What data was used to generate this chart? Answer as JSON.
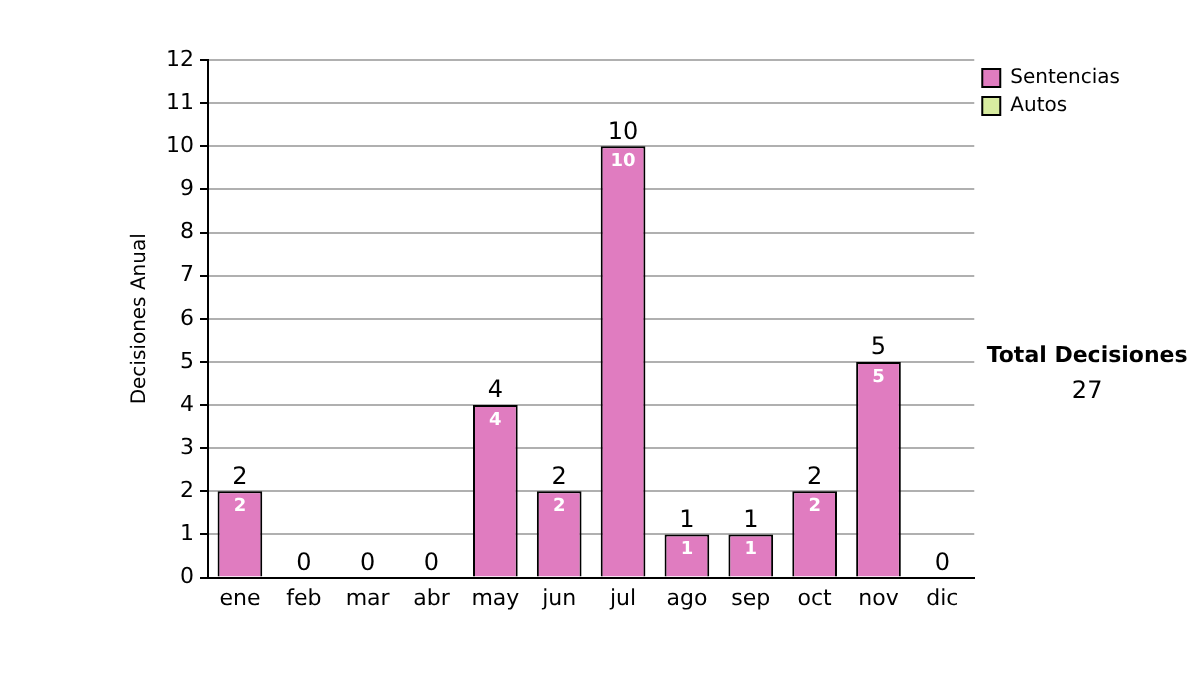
{
  "chart_data": {
    "type": "bar",
    "stacked": true,
    "ylabel": "Decisiones Anual",
    "categories": [
      "ene",
      "feb",
      "mar",
      "abr",
      "may",
      "jun",
      "jul",
      "ago",
      "sep",
      "oct",
      "nov",
      "dic"
    ],
    "series": [
      {
        "name": "Sentencias",
        "color": "#e07cc0",
        "values": [
          2,
          0,
          0,
          0,
          4,
          2,
          10,
          1,
          1,
          2,
          5,
          0
        ],
        "value_labels": [
          "2",
          null,
          null,
          null,
          "4",
          "2",
          "10",
          "1",
          "1",
          "2",
          "5",
          null
        ]
      },
      {
        "name": "Autos",
        "color": "#d8eca0",
        "values": [
          0,
          0,
          0,
          0,
          0,
          0,
          0,
          0,
          0,
          0,
          0,
          0
        ]
      }
    ],
    "ylim": [
      0,
      12
    ],
    "yticks": [
      0,
      1,
      2,
      3,
      4,
      5,
      6,
      7,
      8,
      9,
      10,
      11,
      12
    ],
    "grid": "y",
    "legend": "right",
    "totals": [
      "2",
      "0",
      "0",
      "0",
      "4",
      "2",
      "10",
      "1",
      "1",
      "2",
      "5",
      "0"
    ],
    "annotations": [
      "Total Decisiones",
      "27"
    ]
  }
}
